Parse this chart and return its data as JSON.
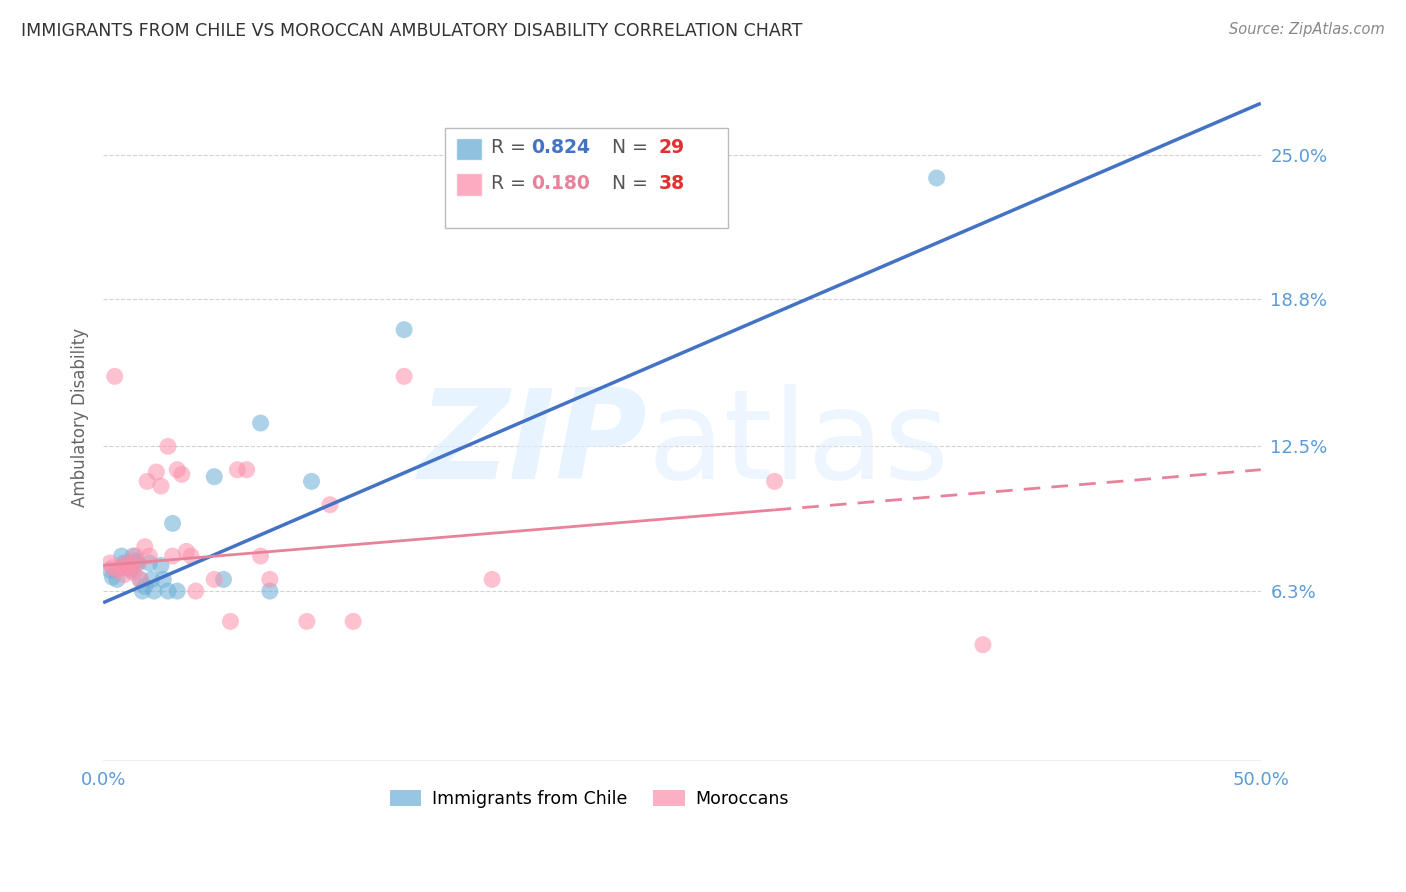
{
  "title": "IMMIGRANTS FROM CHILE VS MOROCCAN AMBULATORY DISABILITY CORRELATION CHART",
  "source": "Source: ZipAtlas.com",
  "ylabel": "Ambulatory Disability",
  "xlim": [
    0.0,
    0.5
  ],
  "ylim": [
    -0.01,
    0.285
  ],
  "yticks": [
    0.063,
    0.125,
    0.188,
    0.25
  ],
  "ytick_labels": [
    "6.3%",
    "12.5%",
    "18.8%",
    "25.0%"
  ],
  "chile_R": 0.824,
  "chile_N": 29,
  "moroccan_R": 0.18,
  "moroccan_N": 38,
  "chile_color": "#6baed6",
  "moroccan_color": "#fc8fab",
  "chile_line_color": "#4472c4",
  "moroccan_line_color": "#e8829a",
  "background_color": "#ffffff",
  "grid_color": "#c8c8c8",
  "chile_points_x": [
    0.003,
    0.004,
    0.006,
    0.008,
    0.009,
    0.01,
    0.011,
    0.012,
    0.013,
    0.014,
    0.015,
    0.016,
    0.017,
    0.018,
    0.02,
    0.021,
    0.022,
    0.025,
    0.026,
    0.028,
    0.03,
    0.032,
    0.048,
    0.052,
    0.068,
    0.072,
    0.09,
    0.13,
    0.36
  ],
  "chile_points_y": [
    0.072,
    0.069,
    0.068,
    0.078,
    0.075,
    0.074,
    0.073,
    0.072,
    0.078,
    0.076,
    0.075,
    0.068,
    0.063,
    0.065,
    0.075,
    0.068,
    0.063,
    0.074,
    0.068,
    0.063,
    0.092,
    0.063,
    0.112,
    0.068,
    0.135,
    0.063,
    0.11,
    0.175,
    0.24
  ],
  "moroccan_points_x": [
    0.003,
    0.004,
    0.005,
    0.006,
    0.008,
    0.009,
    0.01,
    0.011,
    0.012,
    0.013,
    0.014,
    0.015,
    0.016,
    0.018,
    0.019,
    0.02,
    0.023,
    0.025,
    0.028,
    0.03,
    0.032,
    0.034,
    0.036,
    0.038,
    0.04,
    0.048,
    0.055,
    0.058,
    0.062,
    0.068,
    0.072,
    0.088,
    0.098,
    0.108,
    0.13,
    0.168,
    0.29,
    0.38
  ],
  "moroccan_points_y": [
    0.075,
    0.073,
    0.155,
    0.072,
    0.073,
    0.07,
    0.075,
    0.074,
    0.073,
    0.071,
    0.078,
    0.075,
    0.068,
    0.082,
    0.11,
    0.078,
    0.114,
    0.108,
    0.125,
    0.078,
    0.115,
    0.113,
    0.08,
    0.078,
    0.063,
    0.068,
    0.05,
    0.115,
    0.115,
    0.078,
    0.068,
    0.05,
    0.1,
    0.05,
    0.155,
    0.068,
    0.11,
    0.04
  ],
  "chile_line_x": [
    0.0,
    0.5
  ],
  "chile_line_y": [
    0.058,
    0.272
  ],
  "moroccan_line_x": [
    0.0,
    0.5
  ],
  "moroccan_line_y": [
    0.074,
    0.115
  ]
}
